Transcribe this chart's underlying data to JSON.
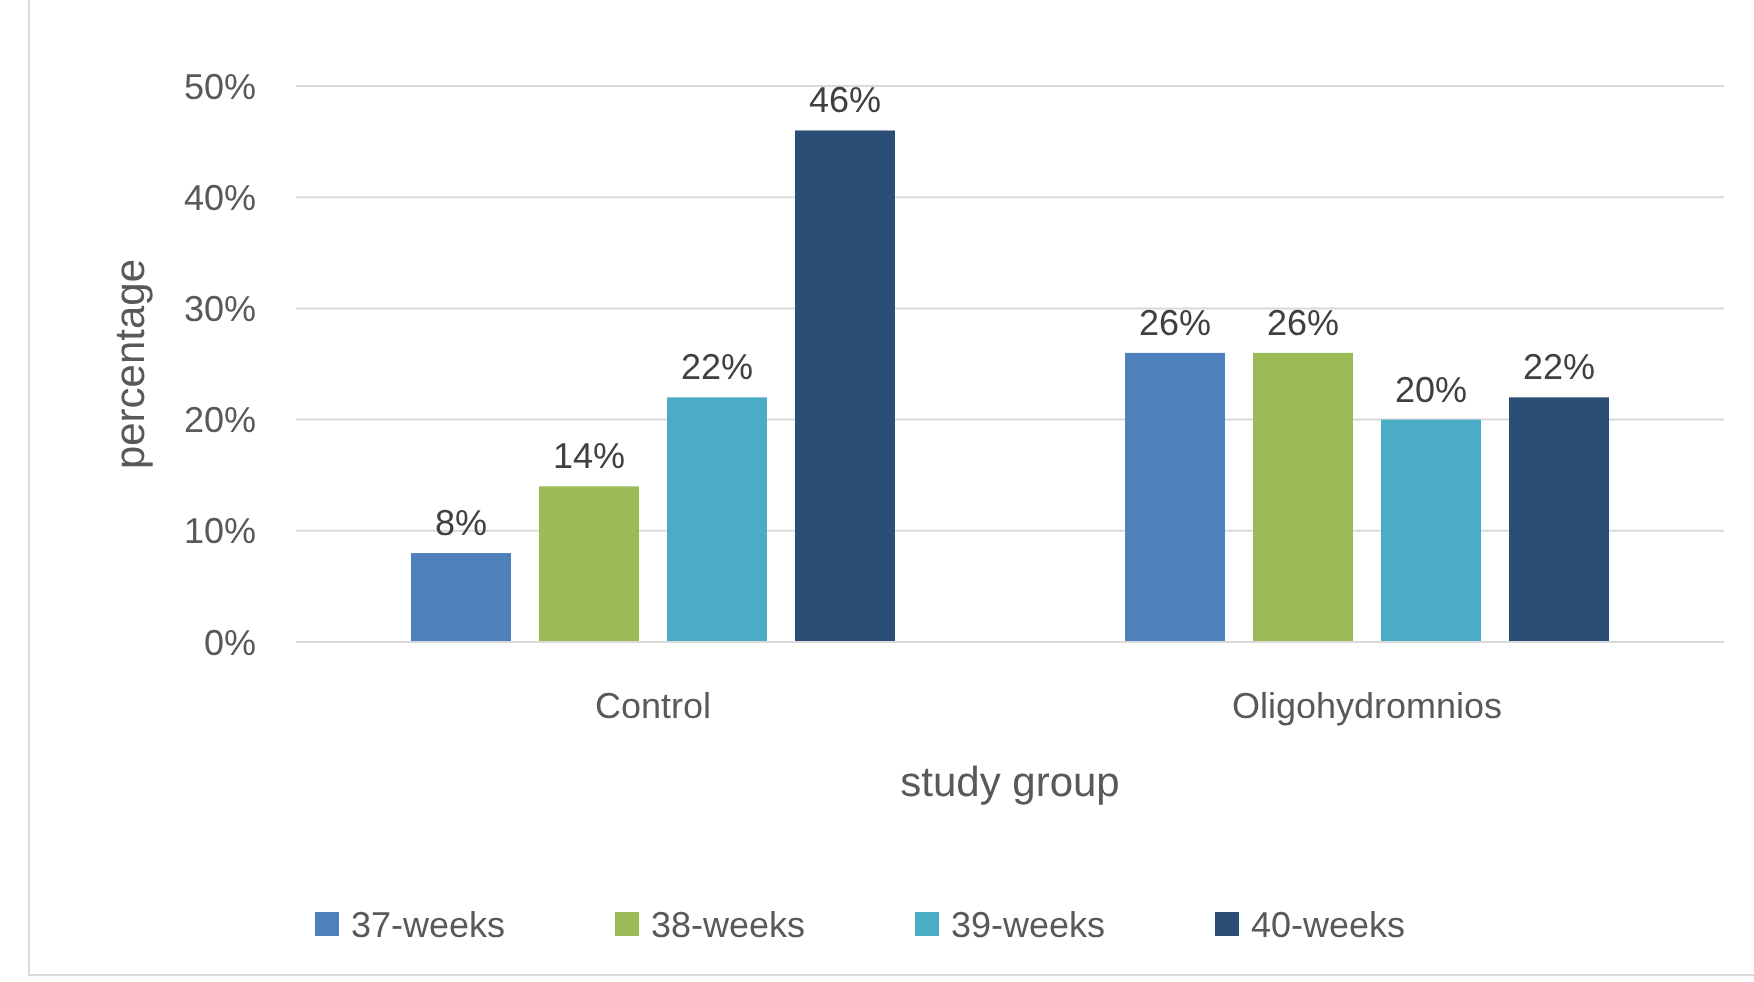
{
  "chart_data": {
    "type": "bar",
    "xlabel": "study group",
    "ylabel": "percentage",
    "categories": [
      "Control",
      "Oligohydromnios"
    ],
    "series": [
      {
        "name": "37-weeks",
        "color": "#4f81bd",
        "values": [
          8,
          26
        ],
        "value_labels": [
          "8%",
          "26%"
        ]
      },
      {
        "name": "38-weeks",
        "color": "#9bbb59",
        "values": [
          14,
          26
        ],
        "value_labels": [
          "14%",
          "26%"
        ]
      },
      {
        "name": "39-weeks",
        "color": "#4bacc6",
        "values": [
          22,
          20
        ],
        "value_labels": [
          "22%",
          "20%"
        ]
      },
      {
        "name": "40-weeks",
        "color": "#2c4d75",
        "values": [
          46,
          22
        ],
        "value_labels": [
          "46%",
          "22%"
        ]
      }
    ],
    "ylim": [
      0,
      50
    ],
    "yticks": [
      {
        "value": 0,
        "label": "0%"
      },
      {
        "value": 10,
        "label": "10%"
      },
      {
        "value": 20,
        "label": "20%"
      },
      {
        "value": 30,
        "label": "30%"
      },
      {
        "value": 40,
        "label": "40%"
      },
      {
        "value": 50,
        "label": "50%"
      }
    ],
    "grid": "y",
    "legend": "bottom"
  }
}
